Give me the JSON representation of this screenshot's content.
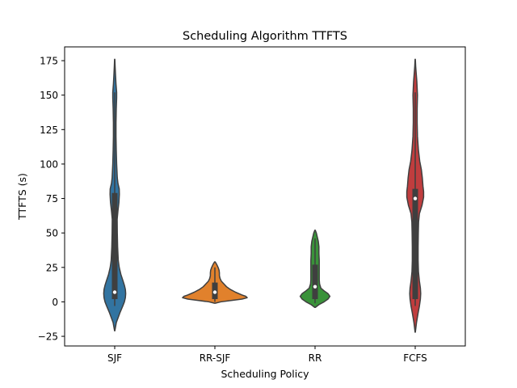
{
  "chart_data": {
    "type": "violin",
    "title": "Scheduling Algorithm TTFTS",
    "xlabel": "Scheduling Policy",
    "ylabel": "TTFTS (s)",
    "ylim": [
      -32,
      185
    ],
    "yticks": [
      -25,
      0,
      25,
      50,
      75,
      100,
      125,
      150,
      175
    ],
    "grid": false,
    "legend": "none",
    "categories": [
      "SJF",
      "RR-SJF",
      "RR",
      "FCFS"
    ],
    "colors": [
      "#3274a1",
      "#e1812c",
      "#3a923a",
      "#c03d3e"
    ],
    "violins": [
      {
        "category": "SJF",
        "range": [
          -21,
          176
        ],
        "profile": [
          [
            -21,
            0.2
          ],
          [
            -15,
            2.5
          ],
          [
            -8,
            8
          ],
          [
            -3,
            12.5
          ],
          [
            0,
            15
          ],
          [
            3,
            16.5
          ],
          [
            6,
            17
          ],
          [
            9,
            16.5
          ],
          [
            12,
            15
          ],
          [
            15,
            13
          ],
          [
            20,
            9.5
          ],
          [
            25,
            7
          ],
          [
            30,
            5.5
          ],
          [
            40,
            4.5
          ],
          [
            50,
            4
          ],
          [
            60,
            3.8
          ],
          [
            66,
            5
          ],
          [
            72,
            6.5
          ],
          [
            78,
            7.2
          ],
          [
            82,
            7
          ],
          [
            86,
            5
          ],
          [
            90,
            4
          ],
          [
            100,
            3
          ],
          [
            110,
            2.4
          ],
          [
            120,
            2
          ],
          [
            130,
            2
          ],
          [
            140,
            2.4
          ],
          [
            148,
            3
          ],
          [
            152,
            3
          ],
          [
            158,
            2
          ],
          [
            165,
            1.2
          ],
          [
            171,
            0.6
          ],
          [
            176,
            0.2
          ]
        ],
        "q1": 2,
        "median": 7,
        "q3": 79,
        "whisker_low": -3,
        "whisker_high": 152
      },
      {
        "category": "RR-SJF",
        "range": [
          -1,
          29
        ],
        "profile": [
          [
            -1,
            0.5
          ],
          [
            0,
            9
          ],
          [
            1,
            25
          ],
          [
            2,
            42
          ],
          [
            3,
            50
          ],
          [
            4,
            48
          ],
          [
            5,
            42
          ],
          [
            7,
            32
          ],
          [
            9,
            24
          ],
          [
            11,
            18
          ],
          [
            13,
            14
          ],
          [
            15,
            10
          ],
          [
            17,
            8
          ],
          [
            19,
            7
          ],
          [
            21,
            7
          ],
          [
            23,
            6.5
          ],
          [
            25,
            5
          ],
          [
            27,
            3
          ],
          [
            29,
            0.5
          ]
        ],
        "q1": 2,
        "median": 7,
        "q3": 14,
        "whisker_low": 0,
        "whisker_high": 25
      },
      {
        "category": "RR",
        "range": [
          -4,
          52
        ],
        "profile": [
          [
            -4,
            0.5
          ],
          [
            -2,
            6
          ],
          [
            0,
            14
          ],
          [
            2,
            20
          ],
          [
            4,
            23
          ],
          [
            6,
            20
          ],
          [
            8,
            14
          ],
          [
            10,
            9
          ],
          [
            13,
            7
          ],
          [
            16,
            6.5
          ],
          [
            20,
            6.5
          ],
          [
            25,
            6.5
          ],
          [
            30,
            6.5
          ],
          [
            35,
            6
          ],
          [
            40,
            6
          ],
          [
            44,
            5
          ],
          [
            47,
            3.5
          ],
          [
            50,
            2
          ],
          [
            52,
            0.3
          ]
        ],
        "q1": 2,
        "median": 11,
        "q3": 27,
        "whisker_low": -1,
        "whisker_high": 46
      },
      {
        "category": "FCFS",
        "range": [
          -22,
          176
        ],
        "profile": [
          [
            -22,
            0.2
          ],
          [
            -15,
            2
          ],
          [
            -8,
            4.5
          ],
          [
            -3,
            6.5
          ],
          [
            2,
            8
          ],
          [
            6,
            8.5
          ],
          [
            10,
            8
          ],
          [
            15,
            6.5
          ],
          [
            22,
            5
          ],
          [
            30,
            4.5
          ],
          [
            40,
            4.5
          ],
          [
            50,
            4.8
          ],
          [
            58,
            5.2
          ],
          [
            64,
            6.5
          ],
          [
            70,
            10.5
          ],
          [
            76,
            13
          ],
          [
            80,
            13
          ],
          [
            84,
            12
          ],
          [
            90,
            11
          ],
          [
            96,
            9.5
          ],
          [
            102,
            7
          ],
          [
            110,
            5
          ],
          [
            120,
            3.5
          ],
          [
            130,
            3
          ],
          [
            140,
            3
          ],
          [
            150,
            3.5
          ],
          [
            155,
            3
          ],
          [
            160,
            2.5
          ],
          [
            166,
            1.5
          ],
          [
            171,
            0.7
          ],
          [
            176,
            0.2
          ]
        ],
        "q1": 2,
        "median": 75,
        "q3": 82,
        "whisker_low": -3,
        "whisker_high": 152
      }
    ]
  }
}
